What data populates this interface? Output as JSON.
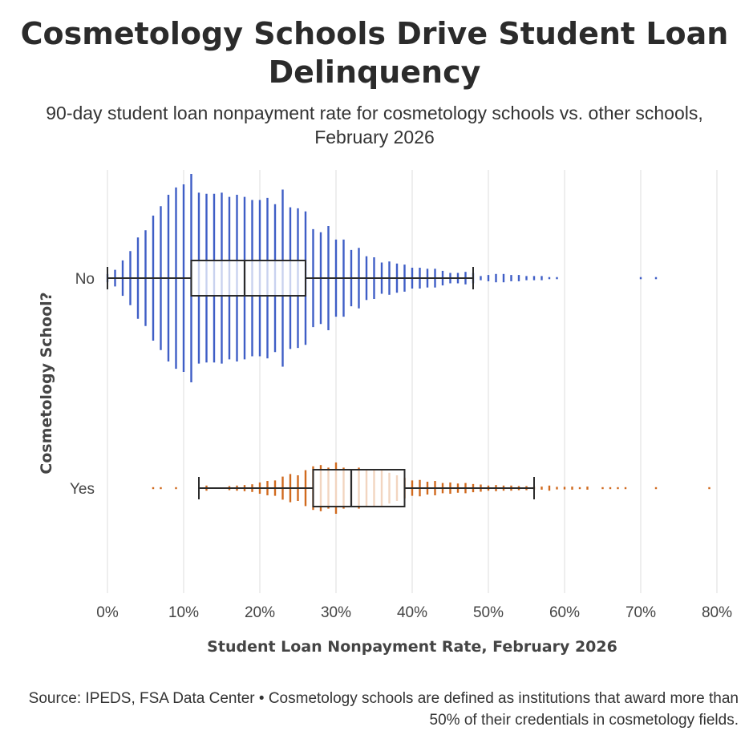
{
  "chart_data": {
    "type": "box-and-distribution",
    "title": "Cosmetology Schools Drive Student Loan Delinquency",
    "subtitle": "90-day student loan nonpayment rate for cosmetology schools vs. other schools, February 2026",
    "xlabel": "Student Loan Nonpayment Rate, February 2026",
    "ylabel": "Cosmetology School?",
    "xlim": [
      0,
      0.8
    ],
    "x_ticks": [
      "0%",
      "10%",
      "20%",
      "30%",
      "40%",
      "50%",
      "60%",
      "70%",
      "80%"
    ],
    "grid": "vertical",
    "categories": [
      "No",
      "Yes"
    ],
    "series": [
      {
        "name": "No",
        "color": "#3f5ec6",
        "box": {
          "whisker_low": 0.0,
          "q1": 0.11,
          "median": 0.18,
          "q3": 0.26,
          "whisker_high": 0.48
        },
        "distribution": {
          "x": [
            0.0,
            0.01,
            0.02,
            0.03,
            0.04,
            0.05,
            0.06,
            0.07,
            0.08,
            0.09,
            0.1,
            0.11,
            0.12,
            0.13,
            0.14,
            0.15,
            0.16,
            0.17,
            0.18,
            0.19,
            0.2,
            0.21,
            0.22,
            0.23,
            0.24,
            0.25,
            0.26,
            0.27,
            0.28,
            0.29,
            0.3,
            0.31,
            0.32,
            0.33,
            0.34,
            0.35,
            0.36,
            0.37,
            0.38,
            0.39,
            0.4,
            0.41,
            0.42,
            0.43,
            0.44,
            0.45,
            0.46,
            0.47,
            0.48,
            0.49,
            0.5,
            0.51,
            0.52,
            0.53,
            0.54,
            0.55,
            0.56,
            0.57,
            0.58,
            0.59,
            0.7,
            0.72
          ],
          "density": [
            0.04,
            0.08,
            0.17,
            0.26,
            0.39,
            0.46,
            0.6,
            0.69,
            0.8,
            0.87,
            0.9,
            1.0,
            0.82,
            0.81,
            0.81,
            0.82,
            0.78,
            0.8,
            0.78,
            0.75,
            0.75,
            0.77,
            0.71,
            0.85,
            0.68,
            0.67,
            0.64,
            0.47,
            0.44,
            0.5,
            0.37,
            0.37,
            0.27,
            0.29,
            0.21,
            0.2,
            0.15,
            0.16,
            0.14,
            0.13,
            0.1,
            0.1,
            0.09,
            0.09,
            0.07,
            0.05,
            0.05,
            0.06,
            0.05,
            0.02,
            0.03,
            0.04,
            0.04,
            0.03,
            0.03,
            0.02,
            0.02,
            0.02,
            0.01,
            0.01,
            0.01,
            0.01
          ]
        }
      },
      {
        "name": "Yes",
        "color": "#d06a1e",
        "box": {
          "whisker_low": 0.12,
          "q1": 0.27,
          "median": 0.32,
          "q3": 0.39,
          "whisker_high": 0.56
        },
        "distribution": {
          "x": [
            0.06,
            0.07,
            0.09,
            0.13,
            0.16,
            0.17,
            0.18,
            0.19,
            0.2,
            0.21,
            0.22,
            0.23,
            0.24,
            0.25,
            0.26,
            0.27,
            0.28,
            0.29,
            0.3,
            0.31,
            0.32,
            0.33,
            0.34,
            0.35,
            0.36,
            0.37,
            0.38,
            0.39,
            0.4,
            0.41,
            0.42,
            0.43,
            0.44,
            0.45,
            0.46,
            0.47,
            0.48,
            0.49,
            0.5,
            0.51,
            0.52,
            0.53,
            0.54,
            0.55,
            0.56,
            0.57,
            0.58,
            0.59,
            0.6,
            0.61,
            0.62,
            0.63,
            0.65,
            0.66,
            0.67,
            0.68,
            0.72,
            0.79
          ],
          "density": [
            0.02,
            0.02,
            0.02,
            0.1,
            0.08,
            0.1,
            0.12,
            0.15,
            0.22,
            0.28,
            0.3,
            0.45,
            0.55,
            0.5,
            0.7,
            0.85,
            0.9,
            0.8,
            1.0,
            0.8,
            0.75,
            0.8,
            0.75,
            0.72,
            0.7,
            0.6,
            0.5,
            0.4,
            0.3,
            0.32,
            0.25,
            0.28,
            0.2,
            0.22,
            0.18,
            0.2,
            0.16,
            0.14,
            0.1,
            0.12,
            0.1,
            0.1,
            0.08,
            0.08,
            0.06,
            0.06,
            0.1,
            0.05,
            0.05,
            0.06,
            0.03,
            0.06,
            0.02,
            0.02,
            0.02,
            0.03,
            0.02,
            0.02
          ]
        }
      }
    ]
  },
  "caption": "Source: IPEDS, FSA Data Center • Cosmetology schools are defined as institutions that award more than 50% of their credentials in cosmetology fields."
}
